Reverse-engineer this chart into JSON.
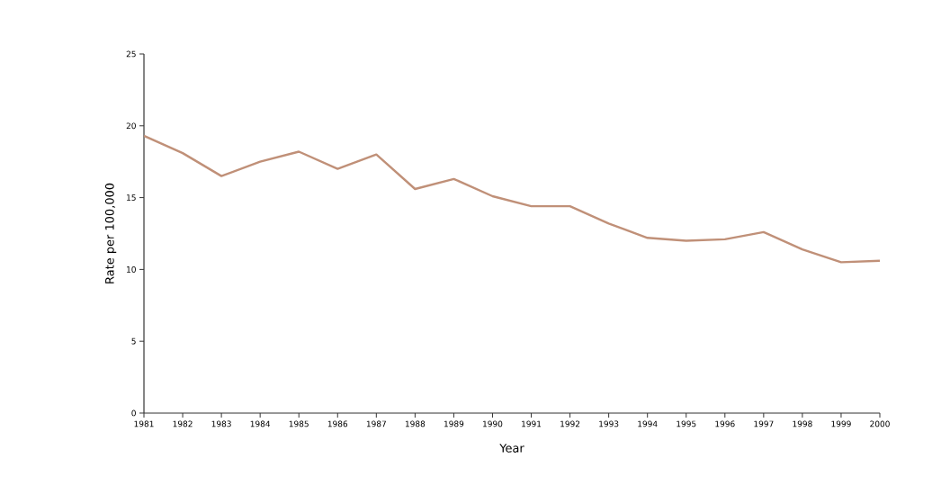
{
  "chart_data": {
    "type": "line",
    "xlabel": "Year",
    "ylabel": "Rate per 100,000",
    "x": [
      1981,
      1982,
      1983,
      1984,
      1985,
      1986,
      1987,
      1988,
      1989,
      1990,
      1991,
      1992,
      1993,
      1994,
      1995,
      1996,
      1997,
      1998,
      1999,
      2000
    ],
    "series": [
      {
        "color": "#c09078",
        "values": [
          19.3,
          18.1,
          16.5,
          17.5,
          18.2,
          17.0,
          18.0,
          15.6,
          16.3,
          15.1,
          14.4,
          14.4,
          13.2,
          12.2,
          12.0,
          12.1,
          12.6,
          11.4,
          10.5,
          10.6
        ]
      }
    ],
    "xlim": [
      1981,
      2000
    ],
    "xticks": [
      1981,
      1982,
      1983,
      1984,
      1985,
      1986,
      1987,
      1988,
      1989,
      1990,
      1991,
      1992,
      1993,
      1994,
      1995,
      1996,
      1997,
      1998,
      1999,
      2000
    ],
    "ylim": [
      0,
      25
    ],
    "yticks": [
      0,
      5,
      10,
      15,
      20,
      25
    ],
    "grid": false,
    "marker": "none",
    "line_style": "solid"
  }
}
